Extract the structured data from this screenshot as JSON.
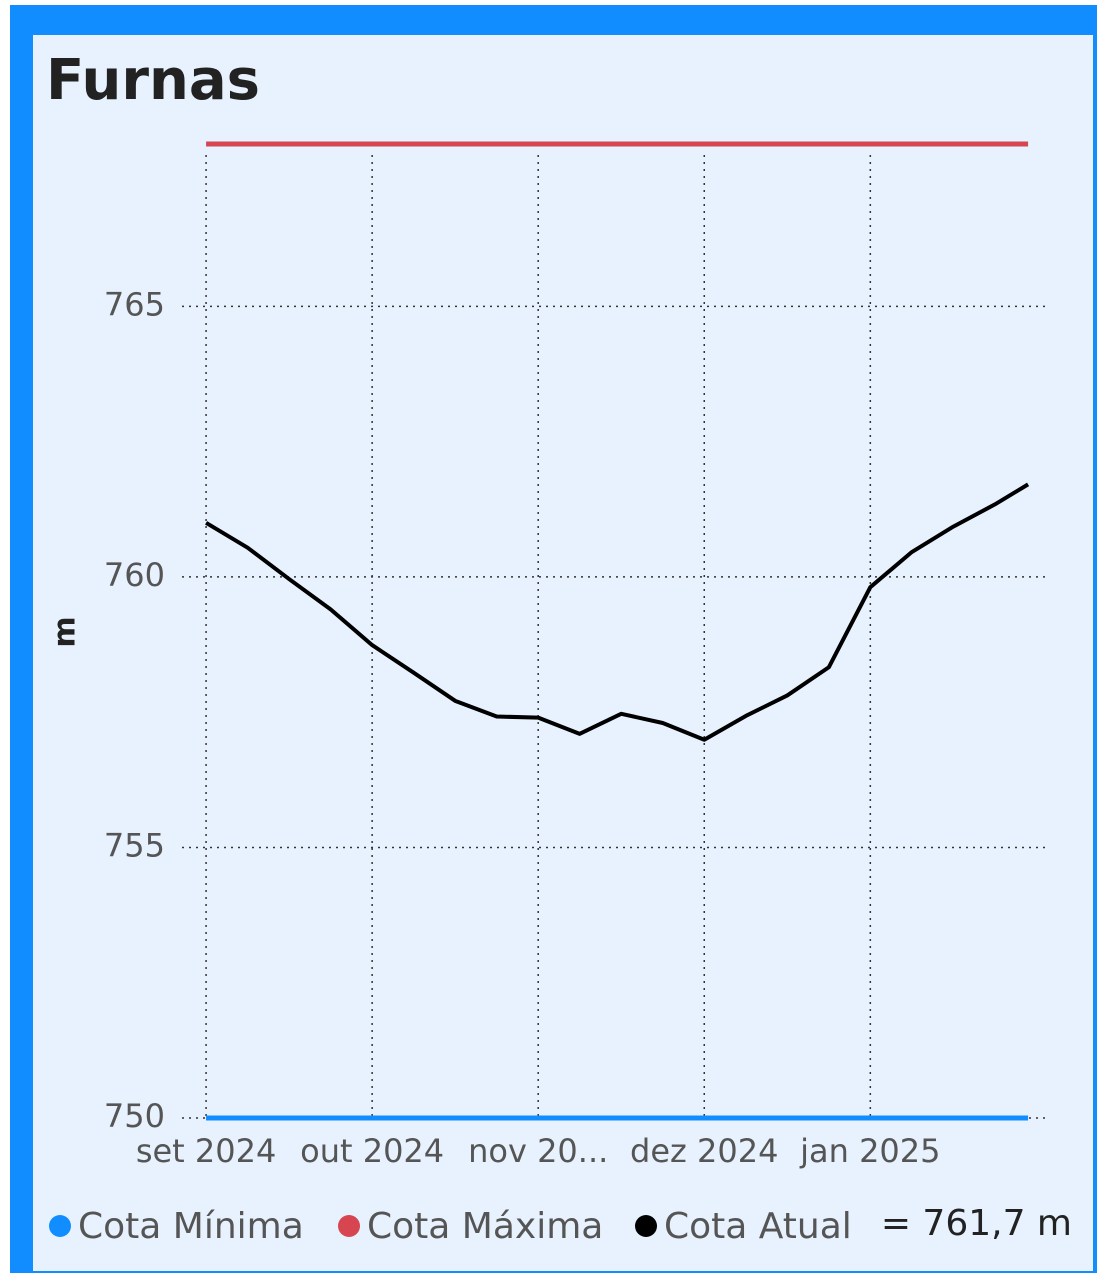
{
  "chart_data": {
    "type": "line",
    "title": "Furnas",
    "y_label": "m",
    "x": [
      0,
      0.25,
      0.5,
      0.75,
      1,
      1.25,
      1.5,
      1.75,
      2,
      2.25,
      2.5,
      2.75,
      3,
      3.25,
      3.5,
      3.75,
      4,
      4.25,
      4.5,
      4.75,
      4.95
    ],
    "series": [
      {
        "name": "Cota Mínima",
        "color": "#118dff",
        "values": [
          750,
          750,
          750,
          750,
          750,
          750,
          750,
          750,
          750,
          750,
          750,
          750,
          750,
          750,
          750,
          750,
          750,
          750,
          750,
          750,
          750
        ]
      },
      {
        "name": "Cota Máxima",
        "color": "#d64550",
        "values": [
          768,
          768,
          768,
          768,
          768,
          768,
          768,
          768,
          768,
          768,
          768,
          768,
          768,
          768,
          768,
          768,
          768,
          768,
          768,
          768,
          768
        ]
      },
      {
        "name": "Cota Atual",
        "color": "#000000",
        "values": [
          761.0,
          760.54,
          759.96,
          759.4,
          758.74,
          758.23,
          757.71,
          757.42,
          757.4,
          757.1,
          757.47,
          757.3,
          756.99,
          757.43,
          757.81,
          758.33,
          759.81,
          760.46,
          760.93,
          761.34,
          761.71
        ]
      }
    ],
    "annotation": "= 761,7 m",
    "xlim": [
      -0.145,
      5.07
    ],
    "xticks": [
      {
        "value": 0,
        "label": "set 2024"
      },
      {
        "value": 1,
        "label": "out 2024"
      },
      {
        "value": 2,
        "label": "nov 20..."
      },
      {
        "value": 3,
        "label": "dez 2024"
      },
      {
        "value": 4,
        "label": "jan 2025"
      }
    ],
    "ylim": [
      750,
      768.5
    ],
    "yticks": [
      750,
      755,
      760,
      765
    ],
    "grid": true
  }
}
